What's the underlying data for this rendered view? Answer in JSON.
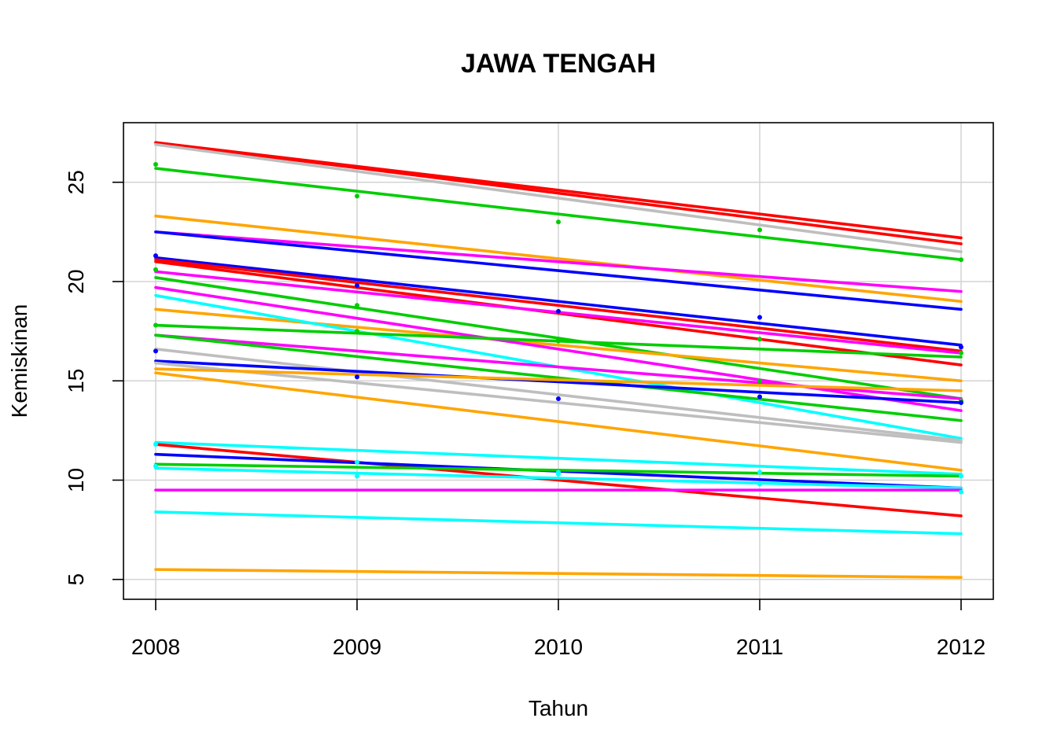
{
  "chart_data": {
    "type": "line",
    "title": "JAWA TENGAH",
    "xlabel": "Tahun",
    "ylabel": "Kemiskinan",
    "x": [
      2008,
      2009,
      2010,
      2011,
      2012
    ],
    "x_ticks": [
      "2008",
      "2009",
      "2010",
      "2011",
      "2012"
    ],
    "y_ticks": [
      "5",
      "10",
      "15",
      "20",
      "25"
    ],
    "xlim": [
      2007.84,
      2012.16
    ],
    "ylim": [
      4.0,
      28.0
    ],
    "grid": true,
    "legend": "none",
    "series": [
      {
        "color": "#ff0000",
        "start": 27.0,
        "end": 22.2,
        "points": [
          27.6,
          25.8,
          24.6,
          24.0,
          22.3
        ]
      },
      {
        "color": "#ff0000",
        "start": 27.0,
        "end": 21.9,
        "points": [
          27.0,
          25.9,
          24.2,
          23.1,
          22.0
        ]
      },
      {
        "color": "#bebebe",
        "start": 26.9,
        "end": 21.5,
        "points": [
          27.8,
          25.6,
          22.7,
          23.4,
          21.6
        ]
      },
      {
        "color": "#00cd00",
        "start": 25.7,
        "end": 21.1,
        "points": [
          25.9,
          24.3,
          23.0,
          22.6,
          21.1
        ]
      },
      {
        "color": "#ffa500",
        "start": 23.3,
        "end": 19.0,
        "points": [
          23.9,
          22.0,
          21.1,
          20.6,
          19.3
        ]
      },
      {
        "color": "#ff00ff",
        "start": 22.5,
        "end": 19.5,
        "points": [
          22.9,
          21.6,
          20.2,
          21.1,
          19.5
        ]
      },
      {
        "color": "#0000ff",
        "start": 22.5,
        "end": 18.6,
        "points": [
          23.3,
          21.4,
          19.0,
          20.5,
          18.8
        ]
      },
      {
        "color": "#0000ff",
        "start": 21.2,
        "end": 16.8,
        "points": [
          21.3,
          19.8,
          18.5,
          18.2,
          16.7
        ]
      },
      {
        "color": "#ff0000",
        "start": 21.1,
        "end": 16.5,
        "points": [
          21.7,
          19.9,
          18.1,
          17.9,
          16.5
        ]
      },
      {
        "color": "#ff0000",
        "start": 21.0,
        "end": 15.8,
        "points": [
          21.5,
          19.7,
          17.4,
          17.2,
          15.8
        ]
      },
      {
        "color": "#ff00ff",
        "start": 20.5,
        "end": 16.4,
        "points": [
          19.8,
          18.6,
          19.9,
          17.3,
          16.1
        ]
      },
      {
        "color": "#00cd00",
        "start": 20.2,
        "end": 14.1,
        "points": [
          20.6,
          18.8,
          17.0,
          15.0,
          14.0
        ]
      },
      {
        "color": "#ffa500",
        "start": 18.6,
        "end": 15.0,
        "points": [
          18.7,
          17.6,
          16.9,
          16.1,
          15.0
        ]
      },
      {
        "color": "#00ffff",
        "start": 19.3,
        "end": 12.1,
        "points": [
          19.5,
          17.8,
          16.3,
          14.9,
          12.4
        ]
      },
      {
        "color": "#ff00ff",
        "start": 19.7,
        "end": 13.5,
        "points": [
          19.8,
          18.5,
          17.8,
          14.6,
          13.4
        ]
      },
      {
        "color": "#00cd00",
        "start": 17.8,
        "end": 16.2,
        "points": [
          17.8,
          17.5,
          17.1,
          17.1,
          16.4
        ]
      },
      {
        "color": "#ff00ff",
        "start": 17.3,
        "end": 14.1,
        "points": [
          17.3,
          16.0,
          14.3,
          14.3,
          14.0
        ]
      },
      {
        "color": "#00cd00",
        "start": 17.3,
        "end": 13.0,
        "points": [
          17.9,
          16.0,
          15.6,
          14.6,
          13.1
        ]
      },
      {
        "color": "#bebebe",
        "start": 16.6,
        "end": 12.0,
        "points": [
          17.0,
          15.8,
          13.6,
          13.1,
          12.1
        ]
      },
      {
        "color": "#0000ff",
        "start": 16.0,
        "end": 13.9,
        "points": [
          16.5,
          15.2,
          14.1,
          14.2,
          13.9
        ]
      },
      {
        "color": "#bebebe",
        "start": 15.9,
        "end": 11.9,
        "points": [
          16.1,
          14.8,
          13.7,
          12.9,
          12.0
        ]
      },
      {
        "color": "#ffa500",
        "start": 15.4,
        "end": 10.5,
        "points": [
          15.7,
          14.6,
          13.7,
          11.6,
          10.5
        ]
      },
      {
        "color": "#ffa500",
        "start": 15.6,
        "end": 14.5,
        "points": [
          15.6,
          14.7,
          15.1,
          15.6,
          14.3
        ]
      },
      {
        "color": "#00ffff",
        "start": 11.9,
        "end": 10.3,
        "points": [
          11.8,
          10.9,
          10.3,
          10.4,
          10.2
        ]
      },
      {
        "color": "#ff0000",
        "start": 11.8,
        "end": 8.2,
        "points": [
          12.5,
          10.9,
          9.0,
          9.4,
          8.6
        ]
      },
      {
        "color": "#0000ff",
        "start": 11.3,
        "end": 9.6,
        "points": [
          11.1,
          10.1,
          10.5,
          11.0,
          9.5
        ]
      },
      {
        "color": "#00cd00",
        "start": 10.8,
        "end": 10.2,
        "points": [
          10.9,
          9.8,
          10.6,
          10.4,
          10.0
        ]
      },
      {
        "color": "#00ffff",
        "start": 10.6,
        "end": 9.6,
        "points": [
          10.7,
          10.2,
          10.4,
          9.8,
          9.4
        ]
      },
      {
        "color": "#ff00ff",
        "start": 9.5,
        "end": 9.5,
        "points": [
          10.3,
          8.5,
          9.5,
          9.9,
          9.3
        ]
      },
      {
        "color": "#00ffff",
        "start": 8.4,
        "end": 7.3,
        "points": [
          8.5,
          7.8,
          8.3,
          7.8,
          7.1
        ]
      },
      {
        "color": "#ffa500",
        "start": 5.5,
        "end": 5.1,
        "points": [
          6.0,
          4.8,
          5.1,
          5.7,
          5.1
        ]
      }
    ]
  }
}
